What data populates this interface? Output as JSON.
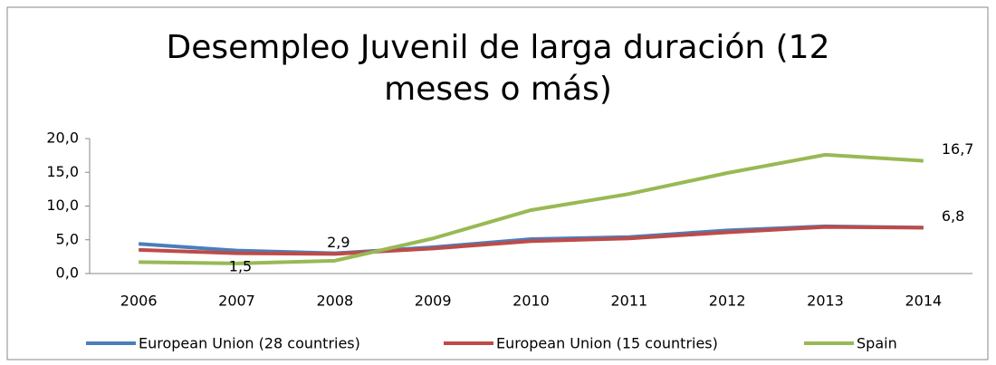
{
  "chart_data": {
    "type": "line",
    "title": "Desempleo Juvenil de larga duración (12 meses o más)",
    "categories": [
      "2006",
      "2007",
      "2008",
      "2009",
      "2010",
      "2011",
      "2012",
      "2013",
      "2014"
    ],
    "series": [
      {
        "name": "European Union (28 countries)",
        "color": "#4a7ebb",
        "values": [
          4.4,
          3.4,
          3.0,
          3.9,
          5.1,
          5.4,
          6.4,
          7.0,
          6.8
        ],
        "value_labels": [
          null,
          null,
          null,
          null,
          null,
          null,
          null,
          null,
          null
        ]
      },
      {
        "name": "European Union (15 countries)",
        "color": "#be4b48",
        "values": [
          3.5,
          3.0,
          2.9,
          3.7,
          4.8,
          5.2,
          6.1,
          6.9,
          6.8
        ],
        "value_labels": [
          null,
          null,
          "2,9",
          null,
          null,
          null,
          null,
          null,
          "6,8"
        ]
      },
      {
        "name": "Spain",
        "color": "#98b954",
        "values": [
          1.7,
          1.5,
          1.9,
          5.2,
          9.4,
          11.8,
          14.9,
          17.6,
          16.7
        ],
        "value_labels": [
          null,
          "1,5",
          null,
          null,
          null,
          null,
          null,
          null,
          "16,7"
        ]
      }
    ],
    "ylim": [
      0,
      20
    ],
    "yticks": [
      {
        "value": 0,
        "label": "0,0"
      },
      {
        "value": 5,
        "label": "5,0"
      },
      {
        "value": 10,
        "label": "10,0"
      },
      {
        "value": 15,
        "label": "15,0"
      },
      {
        "value": 20,
        "label": "20,0"
      }
    ],
    "legend": "bottom"
  }
}
